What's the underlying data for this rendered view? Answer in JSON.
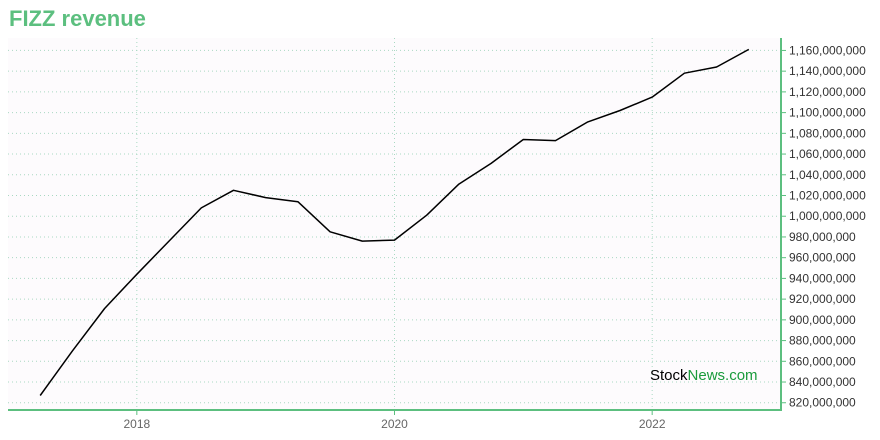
{
  "title": "FIZZ revenue",
  "watermark": {
    "part1": "Stock",
    "part2": "News",
    "part3": ".com"
  },
  "colors": {
    "accent": "#5cbf7f",
    "line": "#000000",
    "watermark_green": "#1a9b3c"
  },
  "chart_data": {
    "type": "line",
    "title": "FIZZ revenue",
    "xlabel": "",
    "ylabel": "",
    "x_ticks": [
      "2018",
      "2020",
      "2022"
    ],
    "y_ticks": [
      "820,000,000",
      "840,000,000",
      "860,000,000",
      "880,000,000",
      "900,000,000",
      "920,000,000",
      "940,000,000",
      "960,000,000",
      "980,000,000",
      "1,000,000,000",
      "1,020,000,000",
      "1,040,000,000",
      "1,060,000,000",
      "1,080,000,000",
      "1,100,000,000",
      "1,120,000,000",
      "1,140,000,000",
      "1,160,000,000"
    ],
    "ylim": [
      813000000,
      1172000000
    ],
    "xlim": [
      2017.0,
      2023.0
    ],
    "grid": true,
    "axis_position": "right",
    "series": [
      {
        "x": [
          2017.25,
          2017.5,
          2017.75,
          2018.0,
          2018.25,
          2018.5,
          2018.75,
          2019.0,
          2019.25,
          2019.5,
          2019.75,
          2020.0,
          2020.25,
          2020.5,
          2020.75,
          2021.0,
          2021.25,
          2021.5,
          2021.75,
          2022.0,
          2022.25,
          2022.5,
          2022.75
        ],
        "values": [
          827000000,
          870000000,
          911000000,
          944000000,
          976000000,
          1008000000,
          1025000000,
          1018000000,
          1014000000,
          985000000,
          976000000,
          977000000,
          1001000000,
          1031000000,
          1051000000,
          1074000000,
          1073000000,
          1091000000,
          1102000000,
          1115000000,
          1138000000,
          1144000000,
          1161000000
        ]
      }
    ]
  }
}
